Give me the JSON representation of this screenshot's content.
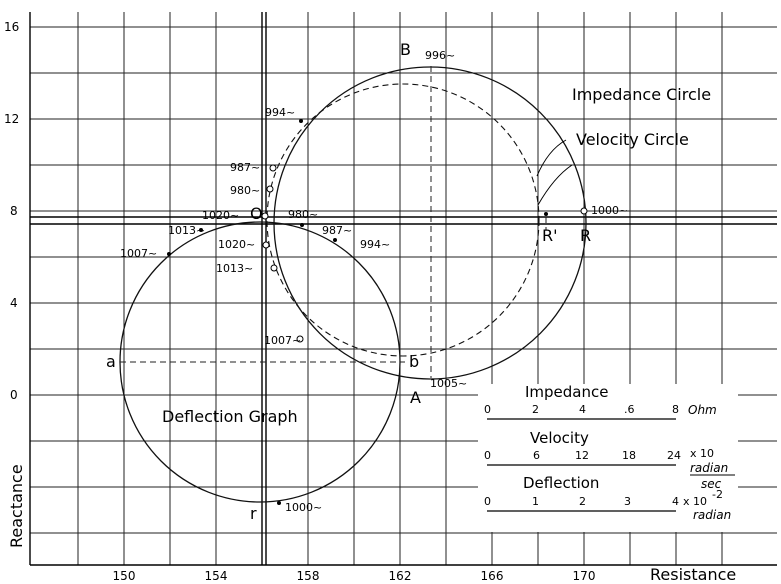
{
  "axes": {
    "x_label": "Resistance",
    "y_label": "Reactance",
    "x_ticks": [
      "150",
      "154",
      "158",
      "162",
      "166",
      "170"
    ],
    "y_ticks": [
      "0",
      "4",
      "8",
      "12",
      "16"
    ]
  },
  "curves": {
    "impedance_circle": "Impedance Circle",
    "velocity_circle": "Velocity Circle",
    "deflection_graph": "Deflection Graph"
  },
  "points": {
    "B": "B",
    "O": "O",
    "R_prime": "R'",
    "R": "R",
    "A": "A",
    "a": "a",
    "b": "b",
    "r": "r"
  },
  "frequency_labels": {
    "f996": "996~",
    "f994_top": "994~",
    "f987_left": "987~",
    "f980_left": "980~",
    "f1020_left": "1020~",
    "f980_right": "980~",
    "f1000_right": "1000~",
    "f1013_upper": "1013~",
    "f987_right": "987~",
    "f994_right": "994~",
    "f1007_left": "1007~",
    "f1020_lower": "1020~",
    "f1013_lower": "1013~",
    "f1007_bottom": "1007~",
    "f1005": "1005~",
    "f1000_bottom": "1000~"
  },
  "scales": {
    "impedance": {
      "title": "Impedance",
      "ticks": [
        "0",
        "2",
        "4",
        ".6",
        "8"
      ],
      "unit": "Ohm"
    },
    "velocity": {
      "title": "Velocity",
      "ticks": [
        "0",
        "6",
        "12",
        "18",
        "24"
      ],
      "multiplier": "x 10",
      "unit_num": "radian",
      "unit_den": "sec"
    },
    "deflection": {
      "title": "Deflection",
      "ticks": [
        "0",
        "1",
        "2",
        "3",
        "4"
      ],
      "multiplier": "x 10",
      "exponent": "-2",
      "unit": "radian"
    }
  }
}
